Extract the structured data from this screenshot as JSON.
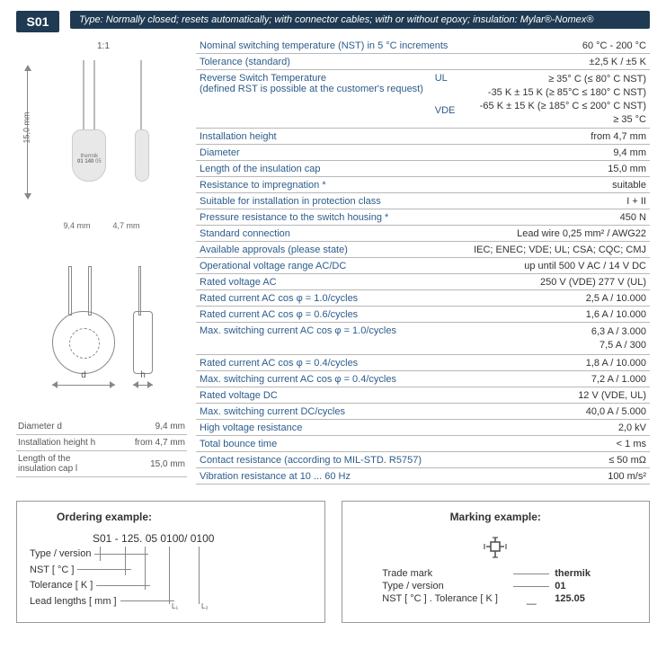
{
  "badge": "S01",
  "type_bar": "Type: Normally closed; resets automatically; with connector cables; with or without epoxy; insulation: Mylar®-Nomex®",
  "left": {
    "ratio": "1:1",
    "height_label": "15,0 mm",
    "dim_front": "9,4 mm",
    "dim_side": "4,7 mm",
    "dim_d": "d",
    "dim_h": "h",
    "table": [
      {
        "label": "Diameter d",
        "value": "9,4 mm"
      },
      {
        "label": "Installation height h",
        "value": "from 4,7 mm"
      },
      {
        "label": "Length of the\ninsulation cap l",
        "value": "15,0 mm"
      }
    ]
  },
  "specs": [
    {
      "label": "Nominal switching temperature (NST) in 5 °C increments",
      "value": "60 °C - 200 °C"
    },
    {
      "label": "Tolerance (standard)",
      "value": "±2,5 K / ±5 K"
    },
    {
      "label": "Reverse Switch Temperature\n(defined RST is possible at the customer's request)",
      "mid": "UL\n\n\nVDE",
      "value": "≥ 35° C (≤ 80° C NST)\n-35 K ± 15 K (≥ 85°C ≤ 180° C NST)\n-65 K ± 15 K (≥ 185° C ≤ 200° C NST)\n≥ 35 °C",
      "multi": true
    },
    {
      "label": "Installation height",
      "value": "from 4,7 mm"
    },
    {
      "label": "Diameter",
      "value": "9,4 mm"
    },
    {
      "label": "Length of the insulation cap",
      "value": "15,0 mm"
    },
    {
      "label": "Resistance to impregnation *",
      "value": "suitable"
    },
    {
      "label": "Suitable for installation in protection class",
      "value": "I + II"
    },
    {
      "label": "Pressure resistance to the switch housing *",
      "value": "450 N"
    },
    {
      "label": "Standard connection",
      "value": "Lead wire 0,25 mm² / AWG22"
    },
    {
      "label": "Available approvals (please state)",
      "value": "IEC; ENEC; VDE; UL; CSA; CQC; CMJ"
    },
    {
      "label": "Operational voltage range AC/DC",
      "value": "up until 500 V AC / 14 V DC"
    },
    {
      "label": "Rated voltage AC",
      "value": "250 V (VDE) 277 V (UL)"
    },
    {
      "label": "Rated current AC cos φ = 1.0/cycles",
      "value": "2,5 A / 10.000"
    },
    {
      "label": "Rated current AC cos φ = 0.6/cycles",
      "value": "1,6 A / 10.000"
    },
    {
      "label": "Max. switching current  AC cos φ = 1.0/cycles",
      "value": "6,3 A / 3.000\n7,5 A / 300",
      "multi": true
    },
    {
      "label": "Rated current AC cos φ = 0.4/cycles",
      "value": "1,8 A / 10.000"
    },
    {
      "label": "Max. switching current  AC cos φ = 0.4/cycles",
      "value": "7,2 A / 1.000"
    },
    {
      "label": "Rated voltage DC",
      "value": "12 V (VDE, UL)"
    },
    {
      "label": "Max. switching current DC/cycles",
      "value": "40,0 A / 5.000"
    },
    {
      "label": "High voltage resistance",
      "value": "2,0 kV"
    },
    {
      "label": "Total bounce time",
      "value": "< 1 ms"
    },
    {
      "label": "Contact resistance (according to MIL-STD. R5757)",
      "value": "≤ 50 mΩ"
    },
    {
      "label": "Vibration resistance at 10 ... 60 Hz",
      "value": "100 m/s²"
    }
  ],
  "ordering": {
    "title": "Ordering example:",
    "main": "S01 - 125. 05 0100/ 0100",
    "labels": [
      "Type / version",
      "NST [ °C ]",
      "Tolerance [ K ]",
      "Lead lengths [ mm ]"
    ],
    "sub1": "L₁",
    "sub2": "L₂"
  },
  "marking": {
    "title": "Marking example:",
    "rows": [
      {
        "label": "Trade mark",
        "value": "thermik"
      },
      {
        "label": "Type / version",
        "value": "01"
      },
      {
        "label": "NST [ °C ] . Tolerance [ K ]",
        "value": "125.05"
      }
    ]
  }
}
